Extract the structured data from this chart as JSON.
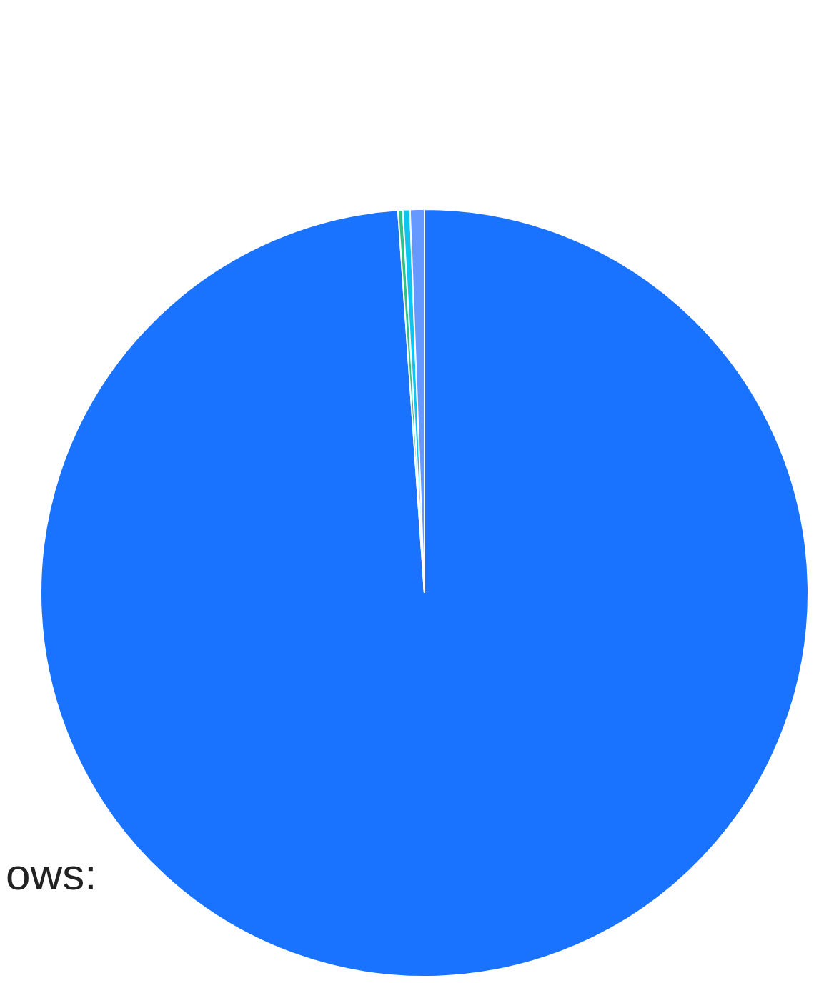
{
  "chart_data": {
    "type": "pie",
    "categories": [
      null,
      null,
      null,
      null
    ],
    "values": [
      98.9,
      0.2,
      0.3,
      0.6
    ],
    "colors": [
      "#1a73ff",
      "#2ec28a",
      "#0dc5f0",
      "#6699ff"
    ],
    "annotations": [
      "ows:"
    ],
    "legend": false
  }
}
